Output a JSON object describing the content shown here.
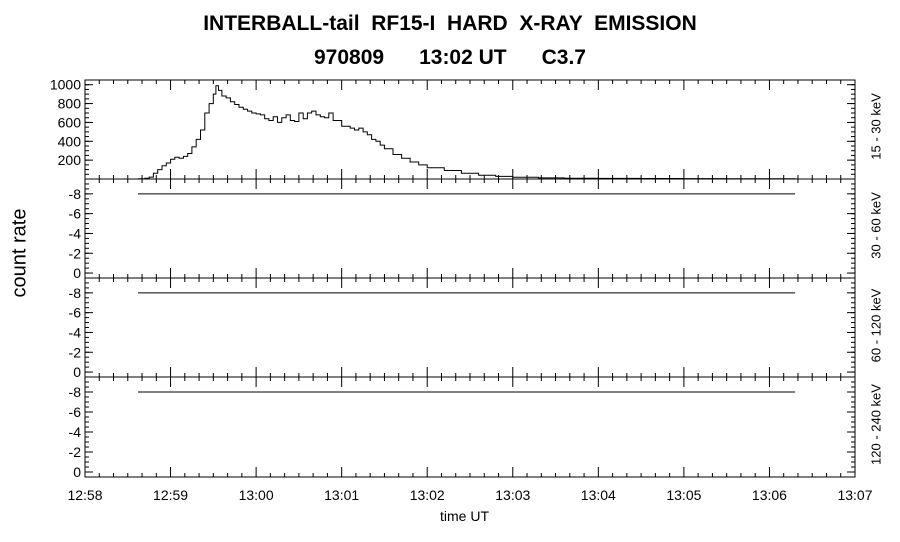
{
  "title_line1": "INTERBALL-tail  RF15-I  HARD  X-RAY  EMISSION",
  "title_line2": "970809      13:02 UT      C3.7",
  "ylabel": "count rate",
  "xlabel": "time UT",
  "chart_data": [
    {
      "type": "line",
      "channel": "15 - 30 keV",
      "ylim": [
        0,
        1050
      ],
      "yticks": [
        200,
        400,
        600,
        800,
        1000
      ],
      "xlim": [
        0,
        9
      ],
      "x_tick_labels": [
        "12:58",
        "12:59",
        "13:00",
        "13:01",
        "13:02",
        "13:03",
        "13:04",
        "13:05",
        "13:06",
        "13:07"
      ],
      "x": [
        0.62,
        0.7,
        0.75,
        0.8,
        0.85,
        0.9,
        0.95,
        1.0,
        1.05,
        1.1,
        1.15,
        1.2,
        1.25,
        1.3,
        1.35,
        1.4,
        1.45,
        1.5,
        1.53,
        1.56,
        1.6,
        1.65,
        1.7,
        1.75,
        1.8,
        1.85,
        1.9,
        1.95,
        2.0,
        2.05,
        2.1,
        2.15,
        2.2,
        2.25,
        2.3,
        2.35,
        2.4,
        2.45,
        2.5,
        2.55,
        2.6,
        2.65,
        2.7,
        2.75,
        2.8,
        2.85,
        2.9,
        2.95,
        3.0,
        3.05,
        3.1,
        3.15,
        3.2,
        3.25,
        3.3,
        3.35,
        3.4,
        3.45,
        3.5,
        3.6,
        3.7,
        3.8,
        3.9,
        4.0,
        4.2,
        4.4,
        4.6,
        4.8,
        5.0,
        5.3,
        5.6,
        6.0,
        6.5,
        7.0,
        7.5,
        8.0,
        8.3
      ],
      "values": [
        2,
        8,
        20,
        60,
        100,
        140,
        170,
        210,
        230,
        220,
        240,
        270,
        340,
        420,
        520,
        700,
        800,
        900,
        990,
        940,
        880,
        860,
        820,
        790,
        760,
        740,
        720,
        700,
        690,
        680,
        640,
        620,
        660,
        600,
        650,
        680,
        620,
        610,
        700,
        640,
        700,
        720,
        680,
        660,
        650,
        700,
        620,
        620,
        560,
        560,
        540,
        520,
        540,
        500,
        470,
        420,
        400,
        360,
        320,
        260,
        220,
        180,
        150,
        120,
        90,
        60,
        40,
        28,
        18,
        12,
        8,
        6,
        5,
        4,
        3,
        3,
        2
      ]
    },
    {
      "type": "line",
      "channel": "30 - 60 keV",
      "ylim": [
        0.5,
        -9.5
      ],
      "yticks": [
        -8,
        -6,
        -4,
        -2,
        0
      ],
      "x": [
        0.62,
        8.3
      ],
      "values": [
        -8,
        -8
      ]
    },
    {
      "type": "line",
      "channel": "60 - 120 keV",
      "ylim": [
        0.5,
        -9.5
      ],
      "yticks": [
        -8,
        -6,
        -4,
        -2,
        0
      ],
      "x": [
        0.62,
        8.3
      ],
      "values": [
        -8,
        -8
      ]
    },
    {
      "type": "line",
      "channel": "120 - 240 keV",
      "ylim": [
        0.5,
        -9.5
      ],
      "yticks": [
        -8,
        -6,
        -4,
        -2,
        0
      ],
      "x": [
        0.62,
        8.3
      ],
      "values": [
        -8,
        -8
      ]
    }
  ]
}
